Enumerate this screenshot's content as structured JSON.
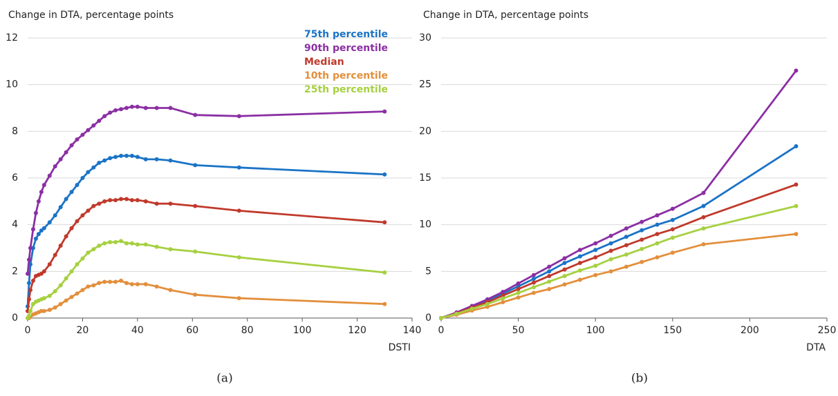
{
  "chart_data": [
    {
      "type": "line",
      "ylabel": "Change in DTA, percentage points",
      "xlabel": "DSTI",
      "caption": "(a)",
      "xlim": [
        0,
        140
      ],
      "xticks": [
        0,
        20,
        40,
        60,
        80,
        100,
        120,
        140
      ],
      "ylim": [
        0,
        12
      ],
      "yticks": [
        0,
        2,
        4,
        6,
        8,
        10,
        12
      ],
      "grid": true,
      "legend": "top-right",
      "x": [
        0,
        0.5,
        1,
        2,
        3,
        4,
        5,
        6,
        8,
        10,
        12,
        14,
        16,
        18,
        20,
        22,
        24,
        26,
        28,
        30,
        32,
        34,
        36,
        38,
        40,
        43,
        47,
        52,
        61,
        77,
        130
      ],
      "series": [
        {
          "name": "75th percentile",
          "color": "#1a73c6",
          "values": [
            0.5,
            1.5,
            2.3,
            3.0,
            3.4,
            3.6,
            3.75,
            3.85,
            4.1,
            4.4,
            4.75,
            5.1,
            5.4,
            5.7,
            6.0,
            6.25,
            6.45,
            6.65,
            6.75,
            6.85,
            6.9,
            6.95,
            6.95,
            6.95,
            6.9,
            6.8,
            6.8,
            6.75,
            6.55,
            6.45,
            6.15
          ]
        },
        {
          "name": "90th percentile",
          "color": "#8b2fa3",
          "values": [
            1.9,
            2.5,
            3.0,
            3.8,
            4.5,
            5.0,
            5.4,
            5.7,
            6.1,
            6.5,
            6.8,
            7.1,
            7.4,
            7.65,
            7.85,
            8.05,
            8.25,
            8.45,
            8.65,
            8.8,
            8.9,
            8.95,
            9.0,
            9.05,
            9.05,
            9.0,
            9.0,
            9.0,
            8.7,
            8.65,
            8.85
          ]
        },
        {
          "name": "Median",
          "color": "#c0392b",
          "values": [
            0.3,
            0.8,
            1.2,
            1.6,
            1.8,
            1.85,
            1.9,
            2.0,
            2.3,
            2.7,
            3.1,
            3.5,
            3.85,
            4.15,
            4.4,
            4.6,
            4.8,
            4.9,
            5.0,
            5.05,
            5.05,
            5.1,
            5.1,
            5.05,
            5.05,
            5.0,
            4.9,
            4.9,
            4.8,
            4.6,
            4.1
          ]
        },
        {
          "name": "10th percentile",
          "color": "#e38f3c",
          "values": [
            0,
            0,
            0.05,
            0.15,
            0.2,
            0.25,
            0.3,
            0.3,
            0.35,
            0.45,
            0.6,
            0.75,
            0.9,
            1.05,
            1.2,
            1.35,
            1.4,
            1.5,
            1.55,
            1.55,
            1.55,
            1.6,
            1.5,
            1.45,
            1.45,
            1.45,
            1.35,
            1.2,
            1.0,
            0.85,
            0.6
          ]
        },
        {
          "name": "25th percentile",
          "color": "#a6d040",
          "values": [
            0,
            0.1,
            0.3,
            0.6,
            0.7,
            0.75,
            0.8,
            0.85,
            0.95,
            1.15,
            1.4,
            1.7,
            2.0,
            2.3,
            2.55,
            2.8,
            2.95,
            3.1,
            3.2,
            3.25,
            3.25,
            3.3,
            3.2,
            3.2,
            3.15,
            3.15,
            3.05,
            2.95,
            2.85,
            2.6,
            1.95
          ]
        }
      ]
    },
    {
      "type": "line",
      "ylabel": "Change in DTA, percentage points",
      "xlabel": "DTA",
      "caption": "(b)",
      "xlim": [
        0,
        250
      ],
      "xticks": [
        0,
        50,
        100,
        150,
        200,
        250
      ],
      "ylim": [
        0,
        30
      ],
      "yticks": [
        0,
        5,
        10,
        15,
        20,
        25,
        30
      ],
      "grid": true,
      "x": [
        0,
        10,
        20,
        30,
        40,
        50,
        60,
        70,
        80,
        90,
        100,
        110,
        120,
        130,
        140,
        150,
        170,
        230
      ],
      "series": [
        {
          "color": "#1a73c6",
          "values": [
            0,
            0.55,
            1.2,
            1.9,
            2.6,
            3.4,
            4.2,
            5.0,
            5.9,
            6.6,
            7.3,
            8.0,
            8.7,
            9.4,
            10.0,
            10.5,
            12.0,
            18.4
          ]
        },
        {
          "color": "#8b2fa3",
          "values": [
            0,
            0.6,
            1.3,
            2.0,
            2.8,
            3.7,
            4.6,
            5.5,
            6.4,
            7.3,
            8.0,
            8.8,
            9.6,
            10.3,
            11.0,
            11.7,
            13.4,
            26.5
          ]
        },
        {
          "color": "#c0392b",
          "values": [
            0,
            0.5,
            1.1,
            1.7,
            2.4,
            3.1,
            3.8,
            4.5,
            5.2,
            5.9,
            6.5,
            7.2,
            7.8,
            8.4,
            9.0,
            9.5,
            10.8,
            14.3
          ]
        },
        {
          "color": "#e38f3c",
          "values": [
            0,
            0.35,
            0.8,
            1.2,
            1.7,
            2.2,
            2.7,
            3.1,
            3.6,
            4.1,
            4.6,
            5.0,
            5.5,
            6.0,
            6.5,
            7.0,
            7.9,
            9.0
          ]
        },
        {
          "color": "#a6d040",
          "values": [
            0,
            0.45,
            1.0,
            1.5,
            2.1,
            2.7,
            3.3,
            3.9,
            4.5,
            5.1,
            5.6,
            6.3,
            6.8,
            7.4,
            8.0,
            8.6,
            9.6,
            12.0
          ]
        }
      ]
    }
  ]
}
